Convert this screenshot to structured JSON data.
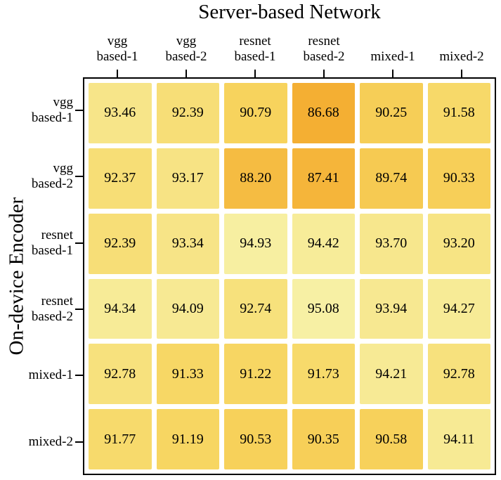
{
  "chart_data": {
    "type": "heatmap",
    "title": "Server-based Network",
    "xlabel": "Server-based Network",
    "ylabel": "On-device Encoder",
    "x_categories": [
      "vgg\nbased-1",
      "vgg\nbased-2",
      "resnet\nbased-1",
      "resnet\nbased-2",
      "mixed-1",
      "mixed-2"
    ],
    "y_categories": [
      "vgg\nbased-1",
      "vgg\nbased-2",
      "resnet\nbased-1",
      "resnet\nbased-2",
      "mixed-1",
      "mixed-2"
    ],
    "values": [
      [
        93.46,
        92.39,
        90.79,
        86.68,
        90.25,
        91.58
      ],
      [
        92.37,
        93.17,
        88.2,
        87.41,
        89.74,
        90.33
      ],
      [
        92.39,
        93.34,
        94.93,
        94.42,
        93.7,
        93.2
      ],
      [
        94.34,
        94.09,
        92.74,
        95.08,
        93.94,
        94.27
      ],
      [
        92.78,
        91.33,
        91.22,
        91.73,
        94.21,
        92.78
      ],
      [
        91.77,
        91.19,
        90.53,
        90.35,
        90.58,
        94.11
      ]
    ],
    "value_range": [
      86.68,
      95.08
    ],
    "value_format_decimals": 2,
    "color_scale": [
      {
        "value": 86.68,
        "color": "#F4AF33"
      },
      {
        "value": 91.0,
        "color": "#F7D55F"
      },
      {
        "value": 95.08,
        "color": "#F7F0A4"
      }
    ],
    "cell_gap_color": "#FFFFFF",
    "axis_border_color": "#000000",
    "grid": false,
    "legend": "none"
  }
}
